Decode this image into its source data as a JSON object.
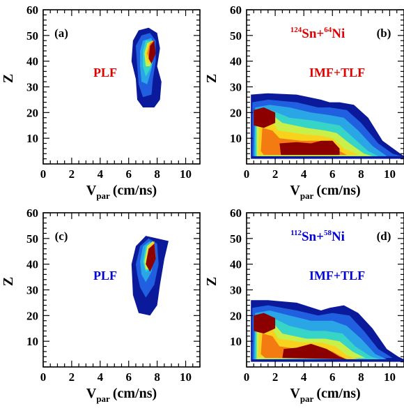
{
  "colors": {
    "red": "#e00000",
    "blue": "#0000dd",
    "levels": [
      "#0a1a9a",
      "#1f5fe0",
      "#2aa6e6",
      "#37d4c8",
      "#c8ef4a",
      "#f8d21c",
      "#f47a12",
      "#8c0000"
    ]
  },
  "chart_data": [
    {
      "id": "a",
      "type": "heatmap",
      "panel_label": "(a)",
      "annotation": "PLF",
      "annotation_color": "red",
      "reaction": null,
      "xlabel_main": "V",
      "xlabel_sub": "par",
      "xlabel_unit": "(cm/ns)",
      "ylabel": "Z",
      "xlim": [
        0,
        11
      ],
      "ylim": [
        0,
        60
      ],
      "xticks": [
        0,
        2,
        4,
        6,
        8,
        10
      ],
      "yticks": [
        10,
        20,
        30,
        40,
        50,
        60
      ],
      "levels": [
        [
          [
            6.3,
            48
          ],
          [
            6.7,
            52
          ],
          [
            7.4,
            53
          ],
          [
            8.0,
            51
          ],
          [
            8.2,
            45
          ],
          [
            8.0,
            38
          ],
          [
            8.3,
            32
          ],
          [
            8.2,
            25
          ],
          [
            7.8,
            22
          ],
          [
            7.0,
            22
          ],
          [
            6.6,
            25
          ],
          [
            6.5,
            33
          ],
          [
            6.2,
            40
          ]
        ],
        [
          [
            6.5,
            46
          ],
          [
            6.9,
            50
          ],
          [
            7.5,
            51
          ],
          [
            7.9,
            48
          ],
          [
            7.9,
            40
          ],
          [
            7.7,
            33
          ],
          [
            7.6,
            27
          ],
          [
            7.0,
            26
          ],
          [
            6.7,
            31
          ],
          [
            6.6,
            38
          ]
        ],
        [
          [
            6.8,
            44
          ],
          [
            7.0,
            48
          ],
          [
            7.6,
            49
          ],
          [
            7.8,
            44
          ],
          [
            7.6,
            37
          ],
          [
            7.3,
            31
          ],
          [
            6.9,
            32
          ],
          [
            6.8,
            38
          ]
        ],
        [
          [
            7.0,
            44
          ],
          [
            7.2,
            48
          ],
          [
            7.7,
            48
          ],
          [
            7.8,
            43
          ],
          [
            7.6,
            38
          ],
          [
            7.2,
            34
          ],
          [
            7.0,
            38
          ]
        ],
        [
          [
            7.1,
            43
          ],
          [
            7.3,
            47
          ],
          [
            7.7,
            48
          ],
          [
            7.8,
            43
          ],
          [
            7.5,
            38
          ],
          [
            7.2,
            38
          ]
        ],
        [
          [
            7.2,
            43
          ],
          [
            7.4,
            47
          ],
          [
            7.7,
            48
          ],
          [
            7.8,
            44
          ],
          [
            7.5,
            39
          ],
          [
            7.3,
            40
          ]
        ],
        [
          [
            7.3,
            43
          ],
          [
            7.5,
            47
          ],
          [
            7.8,
            48
          ],
          [
            7.8,
            44
          ],
          [
            7.5,
            40
          ]
        ],
        [
          [
            7.4,
            41
          ],
          [
            7.5,
            46
          ],
          [
            7.8,
            48
          ],
          [
            7.9,
            43
          ],
          [
            7.6,
            39
          ]
        ]
      ]
    },
    {
      "id": "b",
      "type": "heatmap",
      "panel_label": "(b)",
      "annotation": "IMF+TLF",
      "annotation_color": "red",
      "reaction": {
        "a1": "124",
        "e1": "Sn+",
        "a2": "64",
        "e2": "Ni",
        "color": "red"
      },
      "xlabel_main": "V",
      "xlabel_sub": "par",
      "xlabel_unit": "(cm/ns)",
      "ylabel": "Z",
      "xlim": [
        0,
        11
      ],
      "ylim": [
        0,
        60
      ],
      "xticks": [
        0,
        2,
        4,
        6,
        8,
        10
      ],
      "yticks": [
        10,
        20,
        30,
        40,
        50,
        60
      ],
      "levels": [
        [
          [
            0.3,
            2
          ],
          [
            0.3,
            27
          ],
          [
            1.5,
            27.5
          ],
          [
            3.5,
            27
          ],
          [
            5.2,
            25
          ],
          [
            5.8,
            24
          ],
          [
            6.5,
            24
          ],
          [
            7.5,
            23
          ],
          [
            8.5,
            18
          ],
          [
            9.5,
            9
          ],
          [
            10.5,
            5
          ],
          [
            11,
            3
          ],
          [
            11,
            2
          ]
        ],
        [
          [
            0.4,
            3
          ],
          [
            0.4,
            24
          ],
          [
            1.5,
            25
          ],
          [
            3.5,
            24
          ],
          [
            5,
            22
          ],
          [
            5.8,
            22
          ],
          [
            7,
            21
          ],
          [
            8,
            16
          ],
          [
            9.2,
            8
          ],
          [
            10.2,
            4
          ],
          [
            10.8,
            3
          ]
        ],
        [
          [
            0.5,
            3
          ],
          [
            0.6,
            22
          ],
          [
            1.6,
            23
          ],
          [
            3,
            22
          ],
          [
            4.5,
            20
          ],
          [
            5.8,
            19
          ],
          [
            6.8,
            18
          ],
          [
            7.8,
            13
          ],
          [
            8.8,
            7
          ],
          [
            9.8,
            3
          ]
        ],
        [
          [
            0.6,
            3
          ],
          [
            0.6,
            20
          ],
          [
            1.7,
            21
          ],
          [
            3,
            18
          ],
          [
            4.5,
            17
          ],
          [
            5.5,
            16
          ],
          [
            6.5,
            15
          ],
          [
            7.5,
            10
          ],
          [
            8.5,
            5
          ],
          [
            9.2,
            3
          ]
        ],
        [
          [
            0.7,
            3
          ],
          [
            0.7,
            18.5
          ],
          [
            1.8,
            19
          ],
          [
            2.5,
            16
          ],
          [
            4.2,
            14
          ],
          [
            5.5,
            13
          ],
          [
            6.3,
            12
          ],
          [
            7.2,
            8
          ],
          [
            8.2,
            4
          ],
          [
            8.8,
            3
          ]
        ],
        [
          [
            0.8,
            4
          ],
          [
            0.9,
            16
          ],
          [
            1.8,
            16.5
          ],
          [
            2.2,
            13
          ],
          [
            4,
            11.5
          ],
          [
            5.2,
            11
          ],
          [
            6,
            10
          ],
          [
            6.8,
            6
          ],
          [
            7.8,
            3.5
          ],
          [
            0.9,
            3.5
          ]
        ],
        [
          [
            1.0,
            5
          ],
          [
            1.1,
            14
          ],
          [
            1.8,
            13
          ],
          [
            2.3,
            10
          ],
          [
            3.8,
            9
          ],
          [
            5,
            9
          ],
          [
            5.8,
            8
          ],
          [
            6.5,
            5
          ],
          [
            7,
            3.5
          ],
          [
            1.2,
            3.5
          ]
        ],
        [
          [
            2.4,
            3.5
          ],
          [
            2.3,
            8
          ],
          [
            3.5,
            8.5
          ],
          [
            4.5,
            8
          ],
          [
            5.2,
            9
          ],
          [
            6,
            9
          ],
          [
            6.5,
            6
          ],
          [
            6.5,
            3.5
          ]
        ]
      ],
      "extra_dark": [
        [
          0.5,
          15
        ],
        [
          0.5,
          21
        ],
        [
          1.2,
          22
        ],
        [
          2.0,
          20
        ],
        [
          2.0,
          16
        ],
        [
          1.2,
          14
        ]
      ]
    },
    {
      "id": "c",
      "type": "heatmap",
      "panel_label": "(c)",
      "annotation": "PLF",
      "annotation_color": "blue",
      "reaction": null,
      "xlabel_main": "V",
      "xlabel_sub": "par",
      "xlabel_unit": "(cm/ns)",
      "ylabel": "Z",
      "xlim": [
        0,
        11
      ],
      "ylim": [
        0,
        60
      ],
      "xticks": [
        0,
        2,
        4,
        6,
        8,
        10
      ],
      "yticks": [
        10,
        20,
        30,
        40,
        50,
        60
      ],
      "levels": [
        [
          [
            6.2,
            40
          ],
          [
            6.5,
            47
          ],
          [
            7.2,
            51
          ],
          [
            8.0,
            50
          ],
          [
            8.8,
            49
          ],
          [
            8.5,
            42
          ],
          [
            8.2,
            32
          ],
          [
            8.0,
            24
          ],
          [
            7.5,
            20
          ],
          [
            6.7,
            21
          ],
          [
            6.3,
            28
          ]
        ],
        [
          [
            6.5,
            40
          ],
          [
            6.8,
            47
          ],
          [
            7.4,
            50
          ],
          [
            8.0,
            48
          ],
          [
            8.1,
            40
          ],
          [
            7.8,
            32
          ],
          [
            7.2,
            27
          ],
          [
            6.8,
            31
          ],
          [
            6.6,
            36
          ]
        ],
        [
          [
            6.8,
            41
          ],
          [
            7.0,
            47
          ],
          [
            7.5,
            49
          ],
          [
            7.8,
            45
          ],
          [
            7.6,
            37
          ],
          [
            7.2,
            33
          ],
          [
            6.9,
            36
          ]
        ],
        [
          [
            7.0,
            41
          ],
          [
            7.2,
            47
          ],
          [
            7.7,
            49
          ],
          [
            7.8,
            44
          ],
          [
            7.5,
            38
          ],
          [
            7.2,
            37
          ]
        ],
        [
          [
            7.1,
            41
          ],
          [
            7.3,
            47
          ],
          [
            7.7,
            49
          ],
          [
            7.8,
            44
          ],
          [
            7.5,
            38
          ],
          [
            7.2,
            38
          ]
        ],
        [
          [
            7.2,
            41
          ],
          [
            7.4,
            47
          ],
          [
            7.8,
            49
          ],
          [
            7.8,
            44
          ],
          [
            7.5,
            38
          ]
        ],
        [
          [
            7.2,
            40
          ],
          [
            7.4,
            46
          ],
          [
            7.8,
            48
          ],
          [
            7.9,
            43
          ],
          [
            7.5,
            38
          ]
        ],
        [
          [
            7.2,
            40
          ],
          [
            7.4,
            46
          ],
          [
            7.8,
            48
          ],
          [
            7.9,
            42
          ],
          [
            7.5,
            37
          ]
        ]
      ]
    },
    {
      "id": "d",
      "type": "heatmap",
      "panel_label": "(d)",
      "annotation": "IMF+TLF",
      "annotation_color": "blue",
      "reaction": {
        "a1": "112",
        "e1": "Sn+",
        "a2": "58",
        "e2": "Ni",
        "color": "blue"
      },
      "xlabel_main": "V",
      "xlabel_sub": "par",
      "xlabel_unit": "(cm/ns)",
      "ylabel": "Z",
      "xlim": [
        0,
        11
      ],
      "ylim": [
        0,
        60
      ],
      "xticks": [
        0,
        2,
        4,
        6,
        8,
        10
      ],
      "yticks": [
        10,
        20,
        30,
        40,
        50,
        60
      ],
      "levels": [
        [
          [
            0.3,
            2
          ],
          [
            0.3,
            26
          ],
          [
            1.5,
            26
          ],
          [
            3.5,
            25
          ],
          [
            5.2,
            22
          ],
          [
            5.8,
            23
          ],
          [
            6.8,
            24
          ],
          [
            7.8,
            21
          ],
          [
            8.8,
            15
          ],
          [
            9.8,
            7
          ],
          [
            10.6,
            4
          ],
          [
            11,
            3
          ],
          [
            11,
            2
          ]
        ],
        [
          [
            0.4,
            3
          ],
          [
            0.4,
            23
          ],
          [
            1.5,
            24
          ],
          [
            3.5,
            22
          ],
          [
            5,
            20
          ],
          [
            6,
            21
          ],
          [
            7.2,
            20
          ],
          [
            8.2,
            14
          ],
          [
            9.2,
            7
          ],
          [
            10.2,
            3.5
          ]
        ],
        [
          [
            0.5,
            3
          ],
          [
            0.6,
            21
          ],
          [
            1.6,
            22
          ],
          [
            3,
            20
          ],
          [
            4.5,
            18
          ],
          [
            6,
            18
          ],
          [
            7,
            16
          ],
          [
            8,
            11
          ],
          [
            9,
            5
          ],
          [
            9.8,
            3
          ]
        ],
        [
          [
            0.6,
            3
          ],
          [
            0.6,
            19
          ],
          [
            1.7,
            19.5
          ],
          [
            3,
            16
          ],
          [
            4.5,
            14
          ],
          [
            5.5,
            14
          ],
          [
            6.7,
            13
          ],
          [
            7.6,
            8
          ],
          [
            8.7,
            4
          ],
          [
            9.3,
            3
          ]
        ],
        [
          [
            0.7,
            3
          ],
          [
            0.7,
            17
          ],
          [
            1.8,
            17.5
          ],
          [
            2.5,
            13
          ],
          [
            4.2,
            11
          ],
          [
            5.5,
            11
          ],
          [
            6.5,
            10
          ],
          [
            7.4,
            6
          ],
          [
            8.3,
            3.5
          ]
        ],
        [
          [
            0.8,
            4
          ],
          [
            0.9,
            15
          ],
          [
            1.8,
            15
          ],
          [
            2.2,
            11
          ],
          [
            4,
            9.5
          ],
          [
            5.2,
            9.5
          ],
          [
            6.2,
            8
          ],
          [
            7,
            4.5
          ],
          [
            7.8,
            3
          ]
        ],
        [
          [
            1.0,
            5
          ],
          [
            1.1,
            13
          ],
          [
            1.8,
            12
          ],
          [
            2.3,
            8
          ],
          [
            3.6,
            7
          ],
          [
            5,
            7.5
          ],
          [
            6,
            6
          ],
          [
            6.8,
            3.5
          ],
          [
            1.3,
            3.5
          ]
        ],
        [
          [
            2.5,
            3.5
          ],
          [
            2.6,
            7
          ],
          [
            3.5,
            7.5
          ],
          [
            4.5,
            9
          ],
          [
            5.6,
            7
          ],
          [
            6.5,
            4
          ],
          [
            7,
            3
          ]
        ]
      ],
      "extra_dark": [
        [
          0.5,
          14
        ],
        [
          0.5,
          20
        ],
        [
          1.2,
          21
        ],
        [
          2.0,
          19
        ],
        [
          2.0,
          15
        ],
        [
          1.2,
          13
        ]
      ]
    }
  ]
}
